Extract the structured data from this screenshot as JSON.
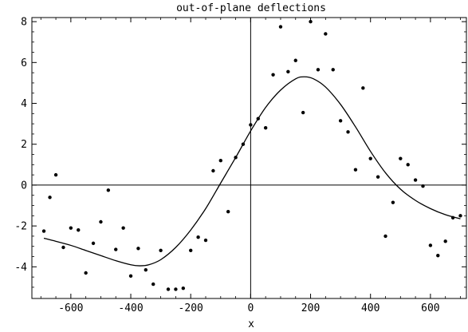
{
  "chart_data": {
    "type": "scatter",
    "title": "out-of-plane deflections",
    "xlabel": "x",
    "ylabel": "",
    "xlim": [
      -730,
      720
    ],
    "ylim": [
      -5.55,
      8.2
    ],
    "grid": false,
    "x_ticks": [
      -600,
      -400,
      -200,
      0,
      200,
      400,
      600
    ],
    "y_ticks": [
      -4,
      -2,
      0,
      2,
      4,
      6,
      8
    ],
    "x_tick_labels": [
      "-600",
      "-400",
      "-200",
      "0",
      "200",
      "400",
      "600"
    ],
    "y_tick_labels": [
      "-4",
      "-2",
      "0",
      "2",
      "4",
      "6",
      "8"
    ],
    "series": [
      {
        "kind": "points",
        "x": [
          -690,
          -670,
          -650,
          -625,
          -600,
          -575,
          -550,
          -525,
          -500,
          -475,
          -450,
          -425,
          -400,
          -375,
          -350,
          -325,
          -300,
          -275,
          -250,
          -225,
          -200,
          -175,
          -150,
          -125,
          -100,
          -75,
          -50,
          -25,
          0,
          25,
          50,
          75,
          100,
          125,
          150,
          175,
          200,
          225,
          250,
          275,
          300,
          325,
          350,
          375,
          400,
          425,
          450,
          475,
          500,
          525,
          550,
          575,
          600,
          625,
          650,
          675,
          700
        ],
        "y": [
          -2.25,
          -0.6,
          0.5,
          -3.05,
          -2.1,
          -2.2,
          -4.3,
          -2.85,
          -1.8,
          -0.25,
          -3.15,
          -2.1,
          -4.45,
          -3.1,
          -4.15,
          -4.85,
          -3.2,
          -5.1,
          -5.1,
          -5.05,
          -3.2,
          -2.55,
          -2.7,
          0.7,
          1.2,
          -1.3,
          1.35,
          2.0,
          2.95,
          3.25,
          2.8,
          5.4,
          7.75,
          5.55,
          6.1,
          3.55,
          8.0,
          5.65,
          7.4,
          5.65,
          3.15,
          2.6,
          0.75,
          4.75,
          1.3,
          0.4,
          -2.5,
          -0.85,
          1.3,
          1.0,
          0.25,
          -0.05,
          -2.95,
          -3.45,
          -2.75,
          -1.6,
          -1.5
        ]
      },
      {
        "kind": "curve",
        "x": [
          -690,
          -650,
          -600,
          -550,
          -500,
          -450,
          -400,
          -370,
          -340,
          -300,
          -250,
          -200,
          -150,
          -100,
          -50,
          0,
          50,
          100,
          150,
          180,
          210,
          250,
          300,
          350,
          400,
          450,
          500,
          550,
          600,
          650,
          700
        ],
        "y": [
          -2.6,
          -2.75,
          -2.95,
          -3.2,
          -3.45,
          -3.7,
          -3.9,
          -3.95,
          -3.9,
          -3.65,
          -3.05,
          -2.2,
          -1.15,
          0.1,
          1.35,
          2.65,
          3.8,
          4.65,
          5.2,
          5.3,
          5.2,
          4.8,
          3.95,
          2.85,
          1.65,
          0.6,
          -0.2,
          -0.75,
          -1.15,
          -1.45,
          -1.65
        ]
      }
    ]
  }
}
